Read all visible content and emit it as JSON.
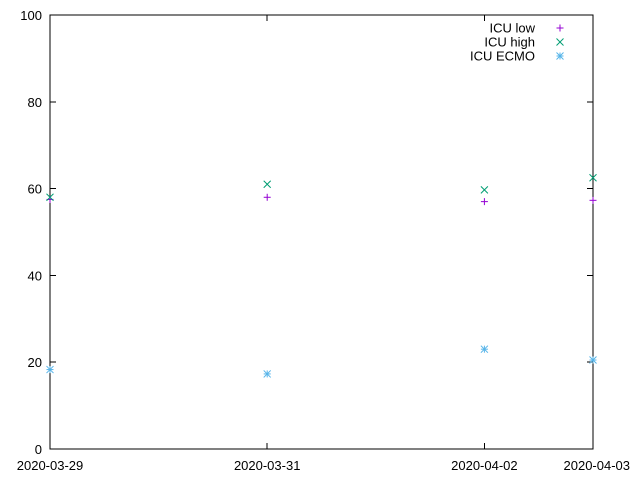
{
  "chart_data": {
    "type": "scatter",
    "x_type": "date",
    "x_ticks": [
      "2020-03-29",
      "2020-03-31",
      "2020-04-02",
      "2020-04-03"
    ],
    "xlim": [
      "2020-03-29",
      "2020-04-03"
    ],
    "y_ticks": [
      0,
      20,
      40,
      60,
      80,
      100
    ],
    "ylim": [
      0,
      100
    ],
    "grid": false,
    "legend_position": "top-right",
    "series": [
      {
        "name": "ICU low",
        "marker": "plus",
        "color": "#9400d3",
        "points": [
          {
            "x": "2020-03-29",
            "y": 57.5
          },
          {
            "x": "2020-03-31",
            "y": 58
          },
          {
            "x": "2020-04-02",
            "y": 57
          },
          {
            "x": "2020-04-03",
            "y": 57.3
          }
        ]
      },
      {
        "name": "ICU high",
        "marker": "cross",
        "color": "#009e73",
        "points": [
          {
            "x": "2020-03-29",
            "y": 58
          },
          {
            "x": "2020-03-31",
            "y": 61
          },
          {
            "x": "2020-04-02",
            "y": 59.7
          },
          {
            "x": "2020-04-03",
            "y": 62.5
          }
        ]
      },
      {
        "name": "ICU ECMO",
        "marker": "star",
        "color": "#56b4e9",
        "points": [
          {
            "x": "2020-03-29",
            "y": 18.3
          },
          {
            "x": "2020-03-31",
            "y": 17.3
          },
          {
            "x": "2020-04-02",
            "y": 23
          },
          {
            "x": "2020-04-03",
            "y": 20.5
          }
        ]
      }
    ]
  }
}
